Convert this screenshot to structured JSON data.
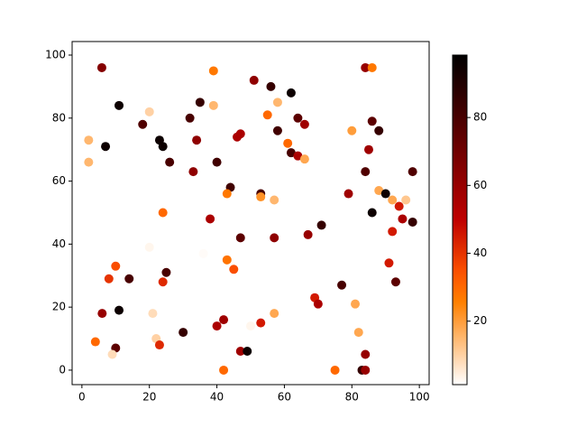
{
  "chart_data": {
    "type": "scatter",
    "colormap": "gist_heat_r",
    "x": [
      5.9,
      39,
      84,
      86,
      51,
      56,
      62,
      11,
      35,
      39,
      58,
      20,
      55,
      32,
      64,
      86,
      18,
      66,
      58,
      80,
      88,
      47,
      46,
      34,
      2,
      23,
      24,
      7,
      61,
      85,
      62,
      64,
      66,
      26,
      40,
      2,
      33,
      84,
      98,
      44,
      88,
      43,
      53,
      79,
      90,
      53,
      57,
      92,
      96,
      94,
      24,
      86,
      38,
      95,
      98,
      71,
      92,
      67,
      47,
      57,
      20,
      36,
      43,
      10,
      91,
      45,
      25,
      8,
      14,
      24,
      93,
      77,
      69,
      70,
      81,
      11,
      6,
      21,
      57,
      42,
      53,
      40,
      50,
      30,
      82,
      22,
      4,
      23,
      10,
      47,
      49,
      84,
      9,
      42,
      75,
      83,
      84
    ],
    "y": [
      96,
      95,
      96,
      96,
      92,
      90,
      88,
      84,
      85,
      84,
      85,
      82,
      81,
      80,
      80,
      79,
      78,
      78,
      76,
      76,
      76,
      75,
      74,
      73,
      73,
      73,
      71,
      71,
      72,
      70,
      69,
      68,
      67,
      66,
      66,
      66,
      63,
      63,
      63,
      58,
      57,
      56,
      56,
      56,
      56,
      55,
      54,
      54,
      54,
      52,
      50,
      50,
      48,
      48,
      47,
      46,
      44,
      43,
      42,
      42,
      39,
      37,
      35,
      33,
      34,
      32,
      31,
      29,
      29,
      28,
      28,
      27,
      23,
      21,
      21,
      19,
      18,
      18,
      18,
      16,
      15,
      14,
      14,
      12,
      12,
      10,
      9,
      8,
      7,
      6,
      6,
      5,
      5,
      0,
      0,
      0,
      0
    ],
    "values": [
      65,
      27,
      60,
      27,
      62,
      85,
      95,
      95,
      85,
      15,
      15,
      10,
      30,
      80,
      75,
      75,
      78,
      58,
      82,
      20,
      85,
      55,
      55,
      62,
      15,
      95,
      95,
      95,
      30,
      58,
      80,
      55,
      18,
      80,
      82,
      15,
      62,
      78,
      78,
      82,
      18,
      27,
      80,
      58,
      95,
      22,
      15,
      18,
      12,
      45,
      30,
      95,
      55,
      55,
      85,
      85,
      45,
      60,
      75,
      62,
      3,
      2,
      28,
      35,
      45,
      35,
      80,
      40,
      80,
      42,
      75,
      80,
      45,
      55,
      18,
      95,
      60,
      8,
      18,
      58,
      45,
      55,
      3,
      85,
      18,
      10,
      30,
      42,
      75,
      58,
      95,
      60,
      8,
      30,
      30,
      85,
      60
    ],
    "xlim": [
      -2.9,
      102.9
    ],
    "ylim": [
      -4.6,
      104.3
    ],
    "xticks": [
      0,
      20,
      40,
      60,
      80,
      100
    ],
    "yticks": [
      0,
      20,
      40,
      60,
      80,
      100
    ],
    "clim": [
      1.3,
      98.4
    ],
    "cticks": [
      20,
      40,
      60,
      80
    ]
  }
}
